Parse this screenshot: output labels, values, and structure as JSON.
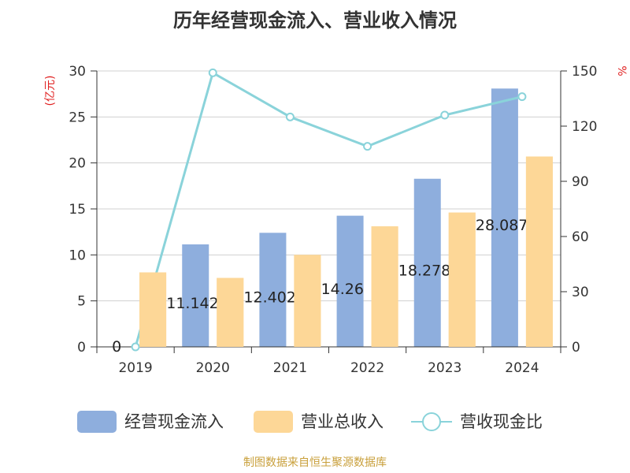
{
  "title": "历年经营现金流入、营业收入情况",
  "source": "制图数据来自恒生聚源数据库",
  "colors": {
    "cash_inflow": "#8eaedd",
    "revenue": "#fdd797",
    "ratio_line": "#8ad3da",
    "unit_red": "#e02020",
    "axis": "#333333",
    "grid": "#d0d0d0"
  },
  "chart_data": {
    "type": "bar",
    "title": "历年经营现金流入、营业收入情况",
    "categories": [
      "2019",
      "2020",
      "2021",
      "2022",
      "2023",
      "2024"
    ],
    "series": [
      {
        "name": "经营现金流入",
        "type": "bar",
        "axis": "left",
        "values": [
          0,
          11.142,
          12.402,
          14.26,
          18.278,
          28.087
        ]
      },
      {
        "name": "营业总收入",
        "type": "bar",
        "axis": "left",
        "values": [
          8.1,
          7.5,
          10.0,
          13.1,
          14.6,
          20.7
        ]
      },
      {
        "name": "营收现金比",
        "type": "line",
        "axis": "right",
        "values": [
          0,
          149,
          125,
          109,
          126,
          136
        ]
      }
    ],
    "data_labels": [
      "0",
      "11.142",
      "12.402",
      "14.26",
      "18.278",
      "28.087"
    ],
    "y_left": {
      "unit": "(亿元)",
      "ylim": [
        0,
        30
      ],
      "ticks": [
        "0",
        "5",
        "10",
        "15",
        "20",
        "25",
        "30"
      ]
    },
    "y_right": {
      "unit": "%",
      "ylim": [
        0,
        150
      ],
      "ticks": [
        "0",
        "30",
        "60",
        "90",
        "120",
        "150"
      ]
    },
    "grid": true,
    "legend_position": "bottom"
  }
}
